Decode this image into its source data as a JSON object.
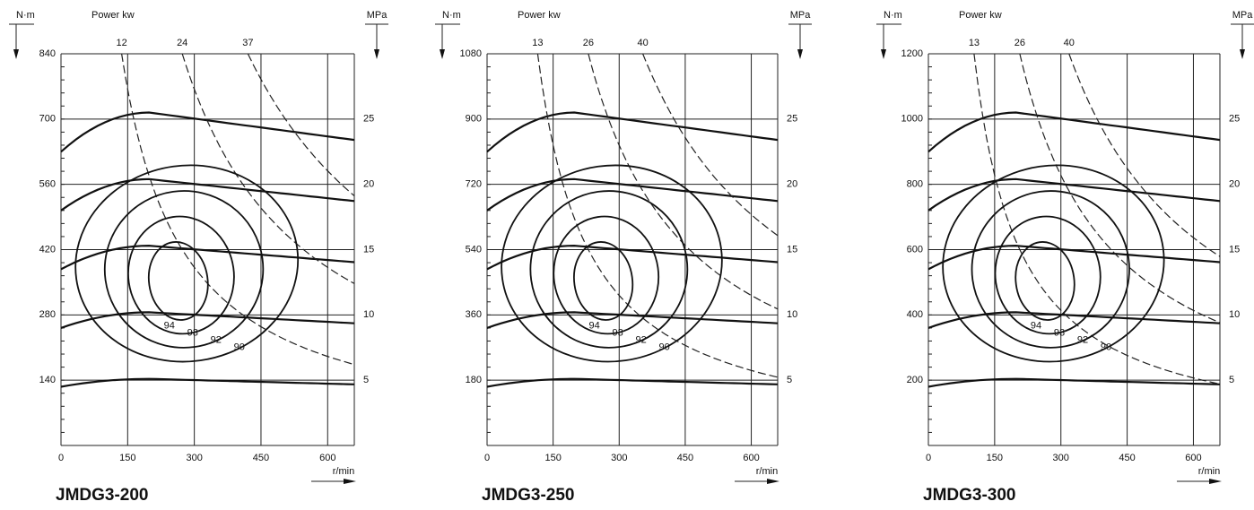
{
  "chart_data": [
    {
      "type": "efficiency-map",
      "title": "JMDG3-200",
      "y_label": "N·m",
      "y2_label": "MPa",
      "x_label": "r/min",
      "power_label": "Power kw",
      "xlim": [
        0,
        660
      ],
      "xticks": [
        0,
        150,
        300,
        450,
        600
      ],
      "ylim": [
        0,
        840
      ],
      "yticks": [
        140,
        280,
        420,
        560,
        700,
        840
      ],
      "y2lim": [
        0,
        30
      ],
      "y2ticks": [
        5,
        10,
        15,
        20,
        25
      ],
      "power": [
        12,
        24,
        37
      ],
      "efficiency": [
        94,
        93,
        92,
        90
      ],
      "grid": true
    },
    {
      "type": "efficiency-map",
      "title": "JMDG3-250",
      "y_label": "N·m",
      "y2_label": "MPa",
      "x_label": "r/min",
      "power_label": "Power kw",
      "xlim": [
        0,
        660
      ],
      "xticks": [
        0,
        150,
        300,
        450,
        600
      ],
      "ylim": [
        0,
        1080
      ],
      "yticks": [
        180,
        360,
        540,
        720,
        900,
        1080
      ],
      "y2lim": [
        0,
        30
      ],
      "y2ticks": [
        5,
        10,
        15,
        20,
        25
      ],
      "power": [
        13,
        26,
        40
      ],
      "efficiency": [
        94,
        93,
        92,
        90
      ],
      "grid": true
    },
    {
      "type": "efficiency-map",
      "title": "JMDG3-300",
      "y_label": "N·m",
      "y2_label": "MPa",
      "x_label": "r/min",
      "power_label": "Power kw",
      "xlim": [
        0,
        660
      ],
      "xticks": [
        0,
        150,
        300,
        450,
        600
      ],
      "ylim": [
        0,
        1200
      ],
      "yticks": [
        200,
        400,
        600,
        800,
        1000,
        1200
      ],
      "y2lim": [
        0,
        30
      ],
      "y2ticks": [
        5,
        10,
        15,
        20,
        25
      ],
      "power": [
        13,
        26,
        40
      ],
      "efficiency": [
        94,
        93,
        92,
        90
      ],
      "grid": true
    }
  ]
}
